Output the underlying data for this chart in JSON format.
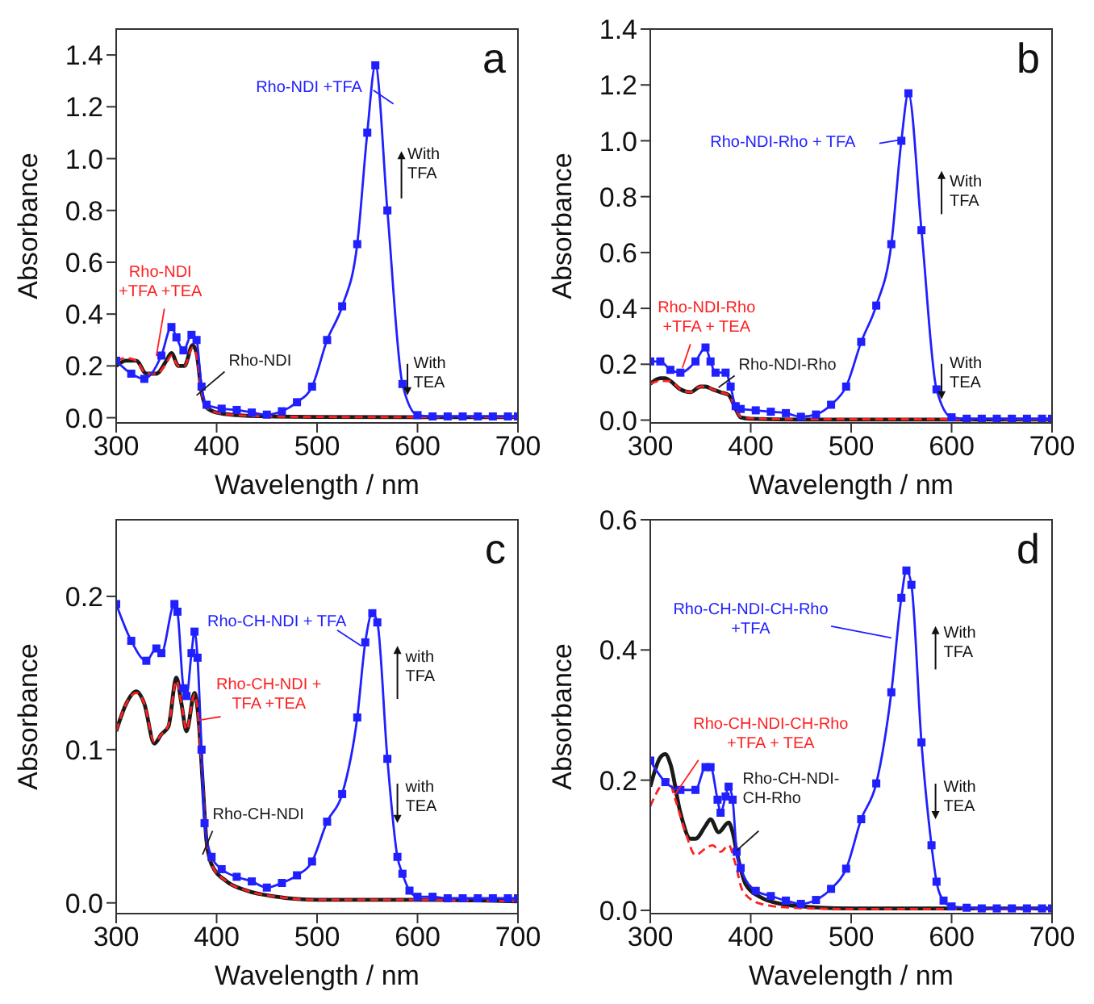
{
  "chart_data": [
    {
      "type": "line",
      "title": "a",
      "xlabel": "Wavelength / nm",
      "ylabel": "Absorbance",
      "xlim": [
        300,
        700
      ],
      "xticks": [
        300,
        400,
        500,
        600,
        700
      ],
      "ylim": [
        -0.02,
        1.5
      ],
      "yticks": [
        {
          "value": 0,
          "label": "0.0"
        },
        {
          "value": 0.2,
          "label": "0.2"
        },
        {
          "value": 0.4,
          "label": "0.4"
        },
        {
          "value": 0.6,
          "label": "0.6"
        },
        {
          "value": 0.8,
          "label": "0.8"
        },
        {
          "value": 1.0,
          "label": "1.0"
        },
        {
          "value": 1.2,
          "label": "1.2"
        },
        {
          "value": 1.4,
          "label": "1.4"
        }
      ],
      "annotations": [
        "With TFA",
        "With TEA"
      ],
      "series": [
        {
          "name": "Rho-NDI",
          "color": "#1a1a1a",
          "marker": "none",
          "line_style": "solid",
          "x": [
            300,
            310,
            320,
            330,
            340,
            350,
            355,
            362,
            368,
            376,
            380,
            385,
            390,
            400,
            420,
            450,
            500,
            600,
            700
          ],
          "values": [
            0.2,
            0.22,
            0.22,
            0.17,
            0.17,
            0.22,
            0.25,
            0.2,
            0.2,
            0.28,
            0.25,
            0.1,
            0.04,
            0.02,
            0.01,
            0.005,
            0.003,
            0.002,
            0.002
          ]
        },
        {
          "name": "Rho-NDI +TFA +TEA",
          "color": "#ff2020",
          "marker": "none",
          "line_style": "dashed",
          "x": [
            300,
            310,
            320,
            330,
            340,
            350,
            355,
            362,
            368,
            376,
            380,
            385,
            390,
            400,
            420,
            450,
            500,
            600,
            700
          ],
          "values": [
            0.22,
            0.23,
            0.22,
            0.17,
            0.17,
            0.21,
            0.24,
            0.2,
            0.2,
            0.27,
            0.24,
            0.1,
            0.04,
            0.02,
            0.01,
            0.005,
            0.003,
            0.002,
            0.002
          ]
        },
        {
          "name": "Rho-NDI +TFA",
          "color": "#2020ff",
          "marker": "square",
          "line_style": "solid",
          "x": [
            300,
            315,
            328,
            345,
            355,
            360,
            367,
            375,
            380,
            385,
            390,
            405,
            420,
            435,
            450,
            465,
            480,
            495,
            510,
            525,
            540,
            550,
            558,
            570,
            585,
            600,
            615,
            630,
            645,
            660,
            675,
            690,
            700
          ],
          "values": [
            0.22,
            0.17,
            0.15,
            0.24,
            0.35,
            0.31,
            0.26,
            0.32,
            0.3,
            0.12,
            0.05,
            0.035,
            0.03,
            0.02,
            0.012,
            0.025,
            0.06,
            0.12,
            0.3,
            0.43,
            0.67,
            1.1,
            1.36,
            0.8,
            0.13,
            0.01,
            0.005,
            0.005,
            0.005,
            0.005,
            0.005,
            0.005,
            0.005
          ]
        }
      ]
    },
    {
      "type": "line",
      "title": "b",
      "xlabel": "Wavelength / nm",
      "ylabel": "Absorbance",
      "xlim": [
        300,
        700
      ],
      "xticks": [
        300,
        400,
        500,
        600,
        700
      ],
      "ylim": [
        -0.01,
        1.4
      ],
      "yticks": [
        {
          "value": 0,
          "label": "0.0"
        },
        {
          "value": 0.2,
          "label": "0.2"
        },
        {
          "value": 0.4,
          "label": "0.4"
        },
        {
          "value": 0.6,
          "label": "0.6"
        },
        {
          "value": 0.8,
          "label": "0.8"
        },
        {
          "value": 1.0,
          "label": "1.0"
        },
        {
          "value": 1.2,
          "label": "1.2"
        },
        {
          "value": 1.4,
          "label": "1.4"
        }
      ],
      "annotations": [
        "With TFA",
        "With TEA"
      ],
      "series": [
        {
          "name": "Rho-NDI-Rho",
          "color": "#1a1a1a",
          "marker": "none",
          "line_style": "solid",
          "x": [
            300,
            310,
            315,
            320,
            330,
            340,
            350,
            355,
            362,
            370,
            378,
            385,
            390,
            400,
            450,
            700
          ],
          "values": [
            0.13,
            0.15,
            0.15,
            0.14,
            0.11,
            0.1,
            0.12,
            0.12,
            0.11,
            0.1,
            0.09,
            0.04,
            0.01,
            0.005,
            0.002,
            0.002
          ]
        },
        {
          "name": "Rho-NDI-Rho +TFA + TEA",
          "color": "#ff2020",
          "marker": "none",
          "line_style": "dashed",
          "x": [
            300,
            310,
            315,
            320,
            330,
            340,
            350,
            355,
            362,
            370,
            378,
            385,
            390,
            400,
            450,
            700
          ],
          "values": [
            0.13,
            0.14,
            0.14,
            0.14,
            0.11,
            0.1,
            0.12,
            0.12,
            0.11,
            0.1,
            0.09,
            0.04,
            0.012,
            0.006,
            0.003,
            0.003
          ]
        },
        {
          "name": "Rho-NDI-Rho + TFA",
          "color": "#2020ff",
          "marker": "square",
          "line_style": "solid",
          "x": [
            300,
            310,
            320,
            330,
            345,
            355,
            360,
            365,
            375,
            380,
            385,
            390,
            405,
            420,
            435,
            450,
            465,
            480,
            495,
            510,
            525,
            540,
            550,
            557,
            570,
            585,
            600,
            615,
            630,
            645,
            660,
            675,
            690,
            700
          ],
          "values": [
            0.21,
            0.21,
            0.18,
            0.17,
            0.21,
            0.26,
            0.21,
            0.17,
            0.17,
            0.12,
            0.05,
            0.04,
            0.035,
            0.03,
            0.025,
            0.012,
            0.02,
            0.055,
            0.12,
            0.28,
            0.41,
            0.63,
            1.0,
            1.17,
            0.68,
            0.11,
            0.01,
            0.005,
            0.005,
            0.005,
            0.005,
            0.005,
            0.005,
            0.005
          ]
        }
      ]
    },
    {
      "type": "line",
      "title": "c",
      "xlabel": "Wavelength / nm",
      "ylabel": "Absorbance",
      "xlim": [
        300,
        700
      ],
      "xticks": [
        300,
        400,
        500,
        600,
        700
      ],
      "ylim": [
        -0.007,
        0.25
      ],
      "yticks": [
        {
          "value": 0,
          "label": "0.0"
        },
        {
          "value": 0.1,
          "label": "0.1"
        },
        {
          "value": 0.2,
          "label": "0.2"
        }
      ],
      "annotations": [
        "with TFA",
        "with TEA"
      ],
      "series": [
        {
          "name": "Rho-CH-NDI",
          "color": "#1a1a1a",
          "marker": "none",
          "line_style": "solid",
          "x": [
            300,
            310,
            320,
            328,
            338,
            345,
            352,
            360,
            365,
            370,
            378,
            382,
            386,
            390,
            395,
            410,
            430,
            460,
            500,
            600,
            700
          ],
          "values": [
            0.112,
            0.13,
            0.138,
            0.13,
            0.104,
            0.11,
            0.115,
            0.147,
            0.13,
            0.112,
            0.137,
            0.12,
            0.08,
            0.04,
            0.025,
            0.014,
            0.008,
            0.004,
            0.002,
            0.002,
            0.001
          ]
        },
        {
          "name": "Rho-CH-NDI + TFA +TEA",
          "color": "#ff2020",
          "marker": "none",
          "line_style": "dashed",
          "x": [
            300,
            310,
            320,
            328,
            338,
            345,
            352,
            360,
            365,
            370,
            378,
            382,
            386,
            390,
            395,
            410,
            430,
            460,
            500,
            600,
            700
          ],
          "values": [
            0.112,
            0.13,
            0.137,
            0.13,
            0.105,
            0.11,
            0.116,
            0.145,
            0.13,
            0.113,
            0.136,
            0.12,
            0.08,
            0.04,
            0.025,
            0.014,
            0.008,
            0.004,
            0.002,
            0.002,
            0.001
          ]
        },
        {
          "name": "Rho-CH-NDI + TFA",
          "color": "#2020ff",
          "marker": "square",
          "line_style": "solid",
          "x": [
            300,
            315,
            330,
            340,
            345,
            358,
            361,
            367,
            370,
            375,
            378,
            381,
            385,
            388,
            395,
            405,
            420,
            435,
            450,
            465,
            480,
            495,
            510,
            525,
            540,
            548,
            555,
            560,
            570,
            580,
            585,
            592,
            600,
            615,
            630,
            645,
            660,
            675,
            690,
            700
          ],
          "values": [
            0.195,
            0.171,
            0.158,
            0.166,
            0.163,
            0.195,
            0.19,
            0.14,
            0.135,
            0.163,
            0.177,
            0.16,
            0.1,
            0.052,
            0.03,
            0.022,
            0.017,
            0.014,
            0.01,
            0.013,
            0.018,
            0.027,
            0.053,
            0.071,
            0.121,
            0.17,
            0.189,
            0.183,
            0.094,
            0.03,
            0.019,
            0.008,
            0.004,
            0.004,
            0.003,
            0.003,
            0.003,
            0.003,
            0.003,
            0.003
          ]
        }
      ]
    },
    {
      "type": "line",
      "title": "d",
      "xlabel": "Wavelength / nm",
      "ylabel": "Absorbance",
      "xlim": [
        300,
        700
      ],
      "xticks": [
        300,
        400,
        500,
        600,
        700
      ],
      "ylim": [
        -0.005,
        0.6
      ],
      "yticks": [
        {
          "value": 0,
          "label": "0.0"
        },
        {
          "value": 0.2,
          "label": "0.2"
        },
        {
          "value": 0.4,
          "label": "0.4"
        },
        {
          "value": 0.6,
          "label": "0.6"
        }
      ],
      "annotations": [
        "With TFA",
        "With TEA"
      ],
      "series": [
        {
          "name": "Rho-CH-NDI-CH-Rho",
          "color": "#1a1a1a",
          "marker": "none",
          "line_style": "solid",
          "x": [
            300,
            310,
            315,
            320,
            330,
            340,
            345,
            355,
            360,
            368,
            378,
            382,
            386,
            395,
            410,
            430,
            460,
            500,
            700
          ],
          "values": [
            0.19,
            0.235,
            0.24,
            0.225,
            0.15,
            0.11,
            0.11,
            0.13,
            0.14,
            0.12,
            0.135,
            0.12,
            0.09,
            0.04,
            0.02,
            0.01,
            0.005,
            0.003,
            0.003
          ]
        },
        {
          "name": "Rho-CH-NDI-CH-Rho +TFA + TEA",
          "color": "#ff2020",
          "marker": "none",
          "line_style": "dashed",
          "x": [
            300,
            310,
            318,
            325,
            335,
            345,
            355,
            362,
            370,
            378,
            385,
            392,
            410,
            440,
            500,
            700
          ],
          "values": [
            0.16,
            0.19,
            0.2,
            0.17,
            0.12,
            0.085,
            0.095,
            0.1,
            0.09,
            0.1,
            0.07,
            0.03,
            0.01,
            0.004,
            0.002,
            0.002
          ]
        },
        {
          "name": "Rho-CH-NDI-CH-Rho +TFA",
          "color": "#2020ff",
          "marker": "square",
          "line_style": "solid",
          "x": [
            300,
            315,
            330,
            345,
            355,
            360,
            367,
            370,
            375,
            378,
            382,
            386,
            390,
            405,
            420,
            435,
            450,
            465,
            480,
            495,
            510,
            525,
            540,
            550,
            555,
            560,
            570,
            580,
            585,
            592,
            600,
            615,
            630,
            645,
            660,
            675,
            690,
            700
          ],
          "values": [
            0.23,
            0.197,
            0.185,
            0.185,
            0.22,
            0.22,
            0.17,
            0.15,
            0.175,
            0.19,
            0.17,
            0.09,
            0.065,
            0.03,
            0.022,
            0.015,
            0.01,
            0.016,
            0.033,
            0.064,
            0.14,
            0.195,
            0.335,
            0.48,
            0.522,
            0.5,
            0.258,
            0.1,
            0.044,
            0.015,
            0.006,
            0.004,
            0.003,
            0.003,
            0.003,
            0.003,
            0.003,
            0.003
          ]
        }
      ]
    }
  ]
}
